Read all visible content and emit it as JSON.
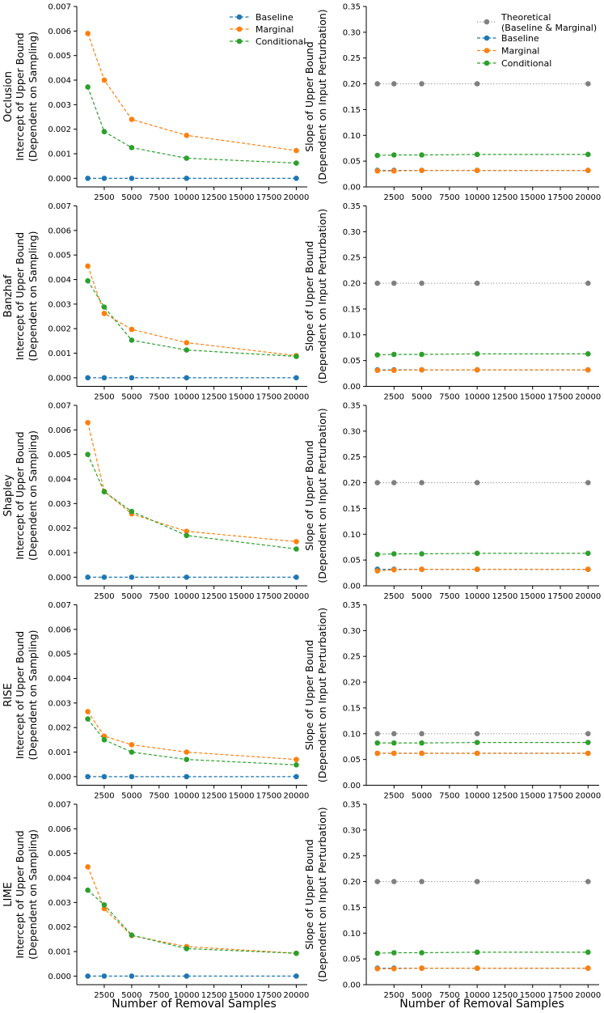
{
  "figure": {
    "xlabel": "Number of Removal Samples",
    "left_ylabel": [
      "Intercept of Upper Bound",
      "(Dependent on Sampling)"
    ],
    "right_ylabel": [
      "Slope of Upper Bound",
      "(Dependent on Input Perturbation)"
    ],
    "row_labels": [
      "Occlusion",
      "Banzhaf",
      "Shapley",
      "RISE",
      "LIME"
    ],
    "colors": {
      "baseline": "#1f77b4",
      "marginal": "#ff7f0e",
      "conditional": "#2ca02c",
      "theoretical": "#808080"
    },
    "legend_left": [
      "Baseline",
      "Marginal",
      "Conditional"
    ],
    "legend_right": [
      "Theoretical",
      "(Baseline & Marginal)",
      "Baseline",
      "Marginal",
      "Conditional"
    ]
  },
  "chart_data": [
    {
      "type": "line",
      "method": "Occlusion",
      "panel": "intercept",
      "xlim": [
        0,
        21000
      ],
      "ylim": [
        -0.00035,
        0.007
      ],
      "x": [
        1000,
        2500,
        5000,
        10000,
        20000
      ],
      "xticks": [
        2500,
        5000,
        7500,
        10000,
        12500,
        15000,
        17500,
        20000
      ],
      "yticks": [
        "0.000",
        "0.001",
        "0.002",
        "0.003",
        "0.004",
        "0.005",
        "0.006",
        "0.007"
      ],
      "series": [
        {
          "name": "Baseline",
          "values": [
            0,
            0,
            0,
            0,
            0
          ]
        },
        {
          "name": "Marginal",
          "values": [
            0.0059,
            0.004,
            0.0024,
            0.00175,
            0.00113
          ]
        },
        {
          "name": "Conditional",
          "values": [
            0.00372,
            0.0019,
            0.00125,
            0.00082,
            0.00062
          ]
        }
      ]
    },
    {
      "type": "line",
      "method": "Occlusion",
      "panel": "slope",
      "xlim": [
        0,
        21000
      ],
      "ylim": [
        0,
        0.35
      ],
      "x": [
        1000,
        2500,
        5000,
        10000,
        20000
      ],
      "xticks": [
        2500,
        5000,
        7500,
        10000,
        12500,
        15000,
        17500,
        20000
      ],
      "yticks": [
        "0.00",
        "0.05",
        "0.10",
        "0.15",
        "0.20",
        "0.25",
        "0.30",
        "0.35"
      ],
      "series": [
        {
          "name": "Theoretical (Baseline & Marginal)",
          "values": [
            0.2,
            0.2,
            0.2,
            0.2,
            0.2
          ]
        },
        {
          "name": "Baseline",
          "values": [
            0.032,
            0.032,
            0.032,
            0.032,
            0.032
          ]
        },
        {
          "name": "Marginal",
          "values": [
            0.031,
            0.031,
            0.032,
            0.032,
            0.032
          ]
        },
        {
          "name": "Conditional",
          "values": [
            0.061,
            0.062,
            0.062,
            0.063,
            0.063
          ]
        }
      ]
    },
    {
      "type": "line",
      "method": "Banzhaf",
      "panel": "intercept",
      "xlim": [
        0,
        21000
      ],
      "ylim": [
        -0.00035,
        0.007
      ],
      "x": [
        1000,
        2500,
        5000,
        10000,
        20000
      ],
      "xticks": [
        2500,
        5000,
        7500,
        10000,
        12500,
        15000,
        17500,
        20000
      ],
      "yticks": [
        "0.000",
        "0.001",
        "0.002",
        "0.003",
        "0.004",
        "0.005",
        "0.006",
        "0.007"
      ],
      "series": [
        {
          "name": "Baseline",
          "values": [
            0,
            0,
            0,
            0,
            0
          ]
        },
        {
          "name": "Marginal",
          "values": [
            0.00455,
            0.00262,
            0.00197,
            0.00143,
            0.0009
          ]
        },
        {
          "name": "Conditional",
          "values": [
            0.00395,
            0.00288,
            0.00153,
            0.00113,
            0.00087
          ]
        }
      ]
    },
    {
      "type": "line",
      "method": "Banzhaf",
      "panel": "slope",
      "xlim": [
        0,
        21000
      ],
      "ylim": [
        0,
        0.35
      ],
      "x": [
        1000,
        2500,
        5000,
        10000,
        20000
      ],
      "xticks": [
        2500,
        5000,
        7500,
        10000,
        12500,
        15000,
        17500,
        20000
      ],
      "yticks": [
        "0.00",
        "0.05",
        "0.10",
        "0.15",
        "0.20",
        "0.25",
        "0.30",
        "0.35"
      ],
      "series": [
        {
          "name": "Theoretical (Baseline & Marginal)",
          "values": [
            0.2,
            0.2,
            0.2,
            0.2,
            0.2
          ]
        },
        {
          "name": "Baseline",
          "values": [
            0.032,
            0.032,
            0.032,
            0.032,
            0.032
          ]
        },
        {
          "name": "Marginal",
          "values": [
            0.031,
            0.031,
            0.032,
            0.032,
            0.032
          ]
        },
        {
          "name": "Conditional",
          "values": [
            0.061,
            0.062,
            0.062,
            0.063,
            0.063
          ]
        }
      ]
    },
    {
      "type": "line",
      "method": "Shapley",
      "panel": "intercept",
      "xlim": [
        0,
        21000
      ],
      "ylim": [
        -0.00035,
        0.007
      ],
      "x": [
        1000,
        2500,
        5000,
        10000,
        20000
      ],
      "xticks": [
        2500,
        5000,
        7500,
        10000,
        12500,
        15000,
        17500,
        20000
      ],
      "yticks": [
        "0.000",
        "0.001",
        "0.002",
        "0.003",
        "0.004",
        "0.005",
        "0.006",
        "0.007"
      ],
      "series": [
        {
          "name": "Baseline",
          "values": [
            0,
            0,
            0,
            0,
            0
          ]
        },
        {
          "name": "Marginal",
          "values": [
            0.0063,
            0.0035,
            0.00258,
            0.00187,
            0.00145
          ]
        },
        {
          "name": "Conditional",
          "values": [
            0.005,
            0.00348,
            0.00268,
            0.0017,
            0.00115
          ]
        }
      ]
    },
    {
      "type": "line",
      "method": "Shapley",
      "panel": "slope",
      "xlim": [
        0,
        21000
      ],
      "ylim": [
        0,
        0.35
      ],
      "x": [
        1000,
        2500,
        5000,
        10000,
        20000
      ],
      "xticks": [
        2500,
        5000,
        7500,
        10000,
        12500,
        15000,
        17500,
        20000
      ],
      "yticks": [
        "0.00",
        "0.05",
        "0.10",
        "0.15",
        "0.20",
        "0.25",
        "0.30",
        "0.35"
      ],
      "series": [
        {
          "name": "Theoretical (Baseline & Marginal)",
          "values": [
            0.2,
            0.2,
            0.2,
            0.2,
            0.2
          ]
        },
        {
          "name": "Baseline",
          "values": [
            0.032,
            0.032,
            0.032,
            0.032,
            0.032
          ]
        },
        {
          "name": "Marginal",
          "values": [
            0.029,
            0.031,
            0.032,
            0.032,
            0.032
          ]
        },
        {
          "name": "Conditional",
          "values": [
            0.061,
            0.062,
            0.062,
            0.063,
            0.063
          ]
        }
      ]
    },
    {
      "type": "line",
      "method": "RISE",
      "panel": "intercept",
      "xlim": [
        0,
        21000
      ],
      "ylim": [
        -0.00035,
        0.007
      ],
      "x": [
        1000,
        2500,
        5000,
        10000,
        20000
      ],
      "xticks": [
        2500,
        5000,
        7500,
        10000,
        12500,
        15000,
        17500,
        20000
      ],
      "yticks": [
        "0.000",
        "0.001",
        "0.002",
        "0.003",
        "0.004",
        "0.005",
        "0.006",
        "0.007"
      ],
      "series": [
        {
          "name": "Baseline",
          "values": [
            0,
            0,
            0,
            0,
            0
          ]
        },
        {
          "name": "Marginal",
          "values": [
            0.00265,
            0.00165,
            0.0013,
            0.001,
            0.0007
          ]
        },
        {
          "name": "Conditional",
          "values": [
            0.00235,
            0.0015,
            0.001,
            0.0007,
            0.00048
          ]
        }
      ]
    },
    {
      "type": "line",
      "method": "RISE",
      "panel": "slope",
      "xlim": [
        0,
        21000
      ],
      "ylim": [
        0,
        0.35
      ],
      "x": [
        1000,
        2500,
        5000,
        10000,
        20000
      ],
      "xticks": [
        2500,
        5000,
        7500,
        10000,
        12500,
        15000,
        17500,
        20000
      ],
      "yticks": [
        "0.00",
        "0.05",
        "0.10",
        "0.15",
        "0.20",
        "0.25",
        "0.30",
        "0.35"
      ],
      "series": [
        {
          "name": "Theoretical (Baseline & Marginal)",
          "values": [
            0.1,
            0.1,
            0.1,
            0.1,
            0.1
          ]
        },
        {
          "name": "Baseline",
          "values": [
            0.062,
            0.062,
            0.062,
            0.062,
            0.062
          ]
        },
        {
          "name": "Marginal",
          "values": [
            0.062,
            0.062,
            0.062,
            0.062,
            0.062
          ]
        },
        {
          "name": "Conditional",
          "values": [
            0.082,
            0.082,
            0.082,
            0.083,
            0.083
          ]
        }
      ]
    },
    {
      "type": "line",
      "method": "LIME",
      "panel": "intercept",
      "xlim": [
        0,
        21000
      ],
      "ylim": [
        -0.00035,
        0.007
      ],
      "x": [
        1000,
        2500,
        5000,
        10000,
        20000
      ],
      "xticks": [
        2500,
        5000,
        7500,
        10000,
        12500,
        15000,
        17500,
        20000
      ],
      "yticks": [
        "0.000",
        "0.001",
        "0.002",
        "0.003",
        "0.004",
        "0.005",
        "0.006",
        "0.007"
      ],
      "series": [
        {
          "name": "Baseline",
          "values": [
            0,
            0,
            0,
            0,
            0
          ]
        },
        {
          "name": "Marginal",
          "values": [
            0.00445,
            0.00275,
            0.00165,
            0.0012,
            0.00093
          ]
        },
        {
          "name": "Conditional",
          "values": [
            0.0035,
            0.0029,
            0.00167,
            0.00112,
            0.00093
          ]
        }
      ]
    },
    {
      "type": "line",
      "method": "LIME",
      "panel": "slope",
      "xlim": [
        0,
        21000
      ],
      "ylim": [
        0,
        0.35
      ],
      "x": [
        1000,
        2500,
        5000,
        10000,
        20000
      ],
      "xticks": [
        2500,
        5000,
        7500,
        10000,
        12500,
        15000,
        17500,
        20000
      ],
      "yticks": [
        "0.00",
        "0.05",
        "0.10",
        "0.15",
        "0.20",
        "0.25",
        "0.30",
        "0.35"
      ],
      "series": [
        {
          "name": "Theoretical (Baseline & Marginal)",
          "values": [
            0.2,
            0.2,
            0.2,
            0.2,
            0.2
          ]
        },
        {
          "name": "Baseline",
          "values": [
            0.032,
            0.032,
            0.032,
            0.032,
            0.032
          ]
        },
        {
          "name": "Marginal",
          "values": [
            0.031,
            0.031,
            0.032,
            0.032,
            0.032
          ]
        },
        {
          "name": "Conditional",
          "values": [
            0.061,
            0.062,
            0.062,
            0.063,
            0.063
          ]
        }
      ]
    }
  ]
}
